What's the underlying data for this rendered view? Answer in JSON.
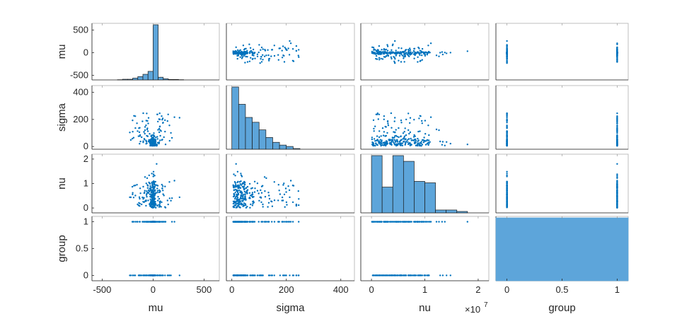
{
  "chart_data": {
    "type": "scatter-matrix",
    "variables": [
      "mu",
      "sigma",
      "nu",
      "group"
    ],
    "x_tick_labels": {
      "mu": [
        "-500",
        "0",
        "500"
      ],
      "sigma": [
        "0",
        "200",
        "400"
      ],
      "nu": [
        "0",
        "1",
        "2"
      ],
      "group": [
        "0",
        "0.5",
        "1"
      ]
    },
    "y_tick_labels": {
      "mu": [
        "500",
        "0",
        "-500"
      ],
      "sigma": [
        "400",
        "200",
        "0"
      ],
      "nu": [
        "2",
        "1",
        "0"
      ],
      "group": [
        "1",
        "0.5",
        "0"
      ]
    },
    "axis_ranges": {
      "mu": [
        -600,
        650
      ],
      "sigma": [
        -20,
        450
      ],
      "nu": [
        -2000000,
        22000000
      ],
      "group": [
        -0.1,
        1.1
      ]
    },
    "nu_exponent": "×10",
    "nu_exponent_power": "7",
    "histograms": {
      "mu": {
        "edges": [
          -350,
          -300,
          -250,
          -200,
          -150,
          -100,
          -50,
          0,
          50,
          100,
          150,
          200,
          250,
          300
        ],
        "counts": [
          1,
          3,
          3,
          8,
          15,
          25,
          38,
          245,
          12,
          5,
          2,
          2,
          1
        ]
      },
      "sigma": {
        "edges": [
          0,
          25,
          50,
          75,
          100,
          125,
          150,
          175,
          200,
          225,
          250
        ],
        "counts": [
          90,
          65,
          46,
          39,
          28,
          17,
          10,
          6,
          4,
          1
        ]
      },
      "nu": {
        "edges": [
          0,
          2000000,
          4000000,
          6000000,
          8000000,
          10000000,
          12000000,
          14000000,
          16000000,
          18000000
        ],
        "counts": [
          40,
          18,
          40,
          36,
          22,
          21,
          2,
          2,
          1
        ]
      },
      "group": {
        "edges": [
          -0.1,
          1.1
        ],
        "counts": [
          200
        ]
      }
    },
    "samples": {
      "n": 260,
      "mu_range": [
        -400,
        280
      ],
      "sigma_range": [
        0,
        260
      ],
      "nu_range": [
        0,
        18000000
      ],
      "group_values": [
        0,
        1
      ]
    },
    "colors": {
      "marker": "#0072BD",
      "bar_fill": "#5DA5DA",
      "bar_edge": "#1a1a1a",
      "axis": "#262626",
      "tick": "#262626"
    }
  }
}
